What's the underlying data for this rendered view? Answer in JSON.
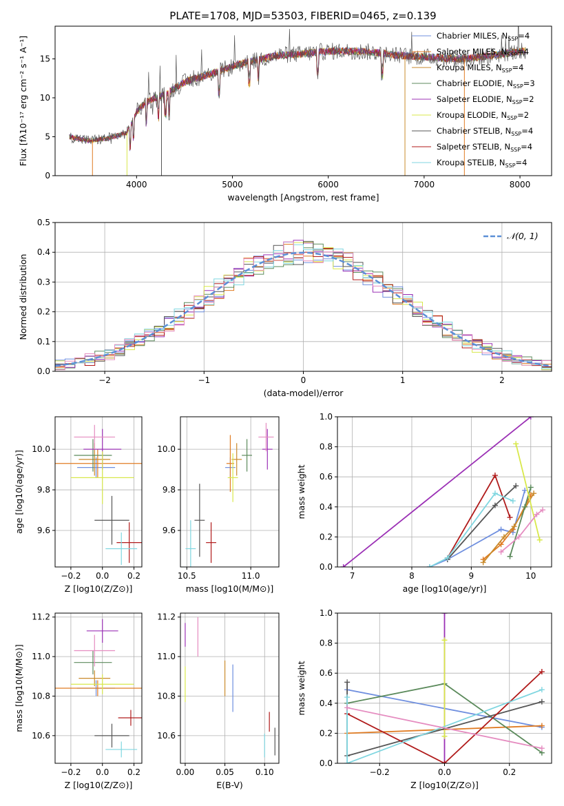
{
  "page": {
    "title": "PLATE=1708, MJD=53503, FIBERID=0465, z=0.139"
  },
  "colors": [
    "#6f8fdf",
    "#e07b22",
    "#c98a2b",
    "#5b8a5b",
    "#9b30b5",
    "#d8e84a",
    "#555555",
    "#b01a1a",
    "#7fd6e0",
    "#e58cc0"
  ],
  "chart_data": [
    {
      "id": "spectrum",
      "type": "line",
      "xlabel": "wavelength [Angstrom, rest frame]",
      "ylabel": "Flux [fλ10⁻¹⁷ erg cm⁻² s⁻¹ A⁻¹]",
      "xlim": [
        3150,
        8330
      ],
      "ylim": [
        0,
        19.2
      ],
      "xticks": [
        4000,
        5000,
        6000,
        7000,
        8000
      ],
      "yticks": [
        0,
        5,
        10,
        15
      ],
      "legend_position": "top-right",
      "continuum": {
        "x": [
          3300,
          3500,
          3700,
          3900,
          4000,
          4100,
          4300,
          4500,
          4700,
          4900,
          5100,
          5300,
          5500,
          5700,
          5900,
          6100,
          6300,
          6500,
          6700,
          6900,
          7100,
          7300,
          7500,
          7700,
          7900,
          8060
        ],
        "y": [
          5.0,
          4.5,
          4.8,
          5.5,
          8.2,
          9.5,
          10.5,
          12.0,
          12.8,
          13.6,
          14.4,
          15.0,
          15.5,
          15.6,
          15.9,
          16.0,
          16.0,
          15.8,
          15.5,
          15.3,
          15.2,
          15.0,
          15.1,
          15.4,
          15.8,
          16.0
        ]
      },
      "series": [
        {
          "name": "Chabrier MILES, N_SSP=4",
          "label": "Chabrier MILES, N",
          "sub": "SSP",
          "tail": "=4"
        },
        {
          "name": "Salpeter MILES, N_SSP=4",
          "label": "Salpeter MILES, N",
          "sub": "SSP",
          "tail": "=4"
        },
        {
          "name": "Kroupa MILES, N_SSP=4",
          "label": "Kroupa MILES, N",
          "sub": "SSP",
          "tail": "=4"
        },
        {
          "name": "Chabrier ELODIE, N_SSP=3",
          "label": "Chabrier ELODIE, N",
          "sub": "SSP",
          "tail": "=3"
        },
        {
          "name": "Salpeter ELODIE, N_SSP=2",
          "label": "Salpeter ELODIE, N",
          "sub": "SSP",
          "tail": "=2"
        },
        {
          "name": "Kroupa ELODIE, N_SSP=2",
          "label": "Kroupa ELODIE, N",
          "sub": "SSP",
          "tail": "=2"
        },
        {
          "name": "Chabrier STELIB, N_SSP=4",
          "label": "Chabrier STELIB, N",
          "sub": "SSP",
          "tail": "=4"
        },
        {
          "name": "Salpeter STELIB, N_SSP=4",
          "label": "Salpeter STELIB, N",
          "sub": "SSP",
          "tail": "=4"
        },
        {
          "name": "Kroupa STELIB, N_SSP=4",
          "label": "Kroupa STELIB, N",
          "sub": "SSP",
          "tail": "=4"
        }
      ],
      "series_colors": [
        "#6f8fdf",
        "#e07b22",
        "#c98a2b",
        "#5b8a5b",
        "#9b30b5",
        "#d8e84a",
        "#555555",
        "#b01a1a",
        "#7fd6e0"
      ]
    },
    {
      "id": "residuals",
      "type": "histogram",
      "xlabel": "(data-model)/error",
      "ylabel": "Normed distribution",
      "xlim": [
        -2.5,
        2.5
      ],
      "ylim": [
        0,
        0.5
      ],
      "xticks": [
        -2,
        -1,
        0,
        1,
        2
      ],
      "yticks": [
        0.0,
        0.1,
        0.2,
        0.3,
        0.4,
        0.5
      ],
      "legend_label": "𝒩(0, 1)",
      "legend_position": "top-right",
      "grid": true
    },
    {
      "id": "age-vs-Z",
      "type": "errorbar",
      "xlabel": "Z [log10(Z/Z⊙)]",
      "ylabel": "age  [log10(age/yr)]",
      "xlim": [
        -0.3,
        0.25
      ],
      "ylim": [
        9.42,
        10.16
      ],
      "xticks": [
        -0.2,
        0.0,
        0.2
      ],
      "yticks": [
        9.6,
        9.8,
        10.0
      ],
      "points": [
        {
          "x": -0.04,
          "y": 9.91,
          "xerr": 0.12,
          "yerr": 0.05,
          "c": 0
        },
        {
          "x": -0.03,
          "y": 9.93,
          "xerr": 0.28,
          "yerr": 0.07,
          "c": 1
        },
        {
          "x": -0.05,
          "y": 9.95,
          "xerr": 0.1,
          "yerr": 0.08,
          "c": 2
        },
        {
          "x": -0.06,
          "y": 9.97,
          "xerr": 0.12,
          "yerr": 0.08,
          "c": 3
        },
        {
          "x": 0.0,
          "y": 10.0,
          "xerr": 0.12,
          "yerr": 0.1,
          "c": 4
        },
        {
          "x": 0.0,
          "y": 9.86,
          "xerr": 0.2,
          "yerr": 0.13,
          "c": 5
        },
        {
          "x": 0.06,
          "y": 9.65,
          "xerr": 0.11,
          "yerr": 0.12,
          "c": 6
        },
        {
          "x": 0.17,
          "y": 9.54,
          "xerr": 0.08,
          "yerr": 0.1,
          "c": 7
        },
        {
          "x": 0.12,
          "y": 9.51,
          "xerr": 0.1,
          "yerr": 0.08,
          "c": 8
        },
        {
          "x": -0.05,
          "y": 10.06,
          "xerr": 0.13,
          "yerr": 0.06,
          "c": 9
        }
      ]
    },
    {
      "id": "age-vs-mass",
      "type": "errorbar",
      "xlabel": "mass [log10(M/M⊙)]",
      "ylabel": "",
      "xlim": [
        10.45,
        11.22
      ],
      "ylim": [
        9.42,
        10.16
      ],
      "xticks": [
        10.5,
        11.0
      ],
      "yticks": [
        9.6,
        9.8,
        10.0
      ],
      "points": [
        {
          "x": 10.84,
          "y": 9.91,
          "xerr": 0.04,
          "yerr": 0.05,
          "c": 0
        },
        {
          "x": 10.84,
          "y": 9.93,
          "xerr": 0.03,
          "yerr": 0.14,
          "c": 1
        },
        {
          "x": 10.89,
          "y": 9.95,
          "xerr": 0.04,
          "yerr": 0.08,
          "c": 2
        },
        {
          "x": 10.97,
          "y": 9.97,
          "xerr": 0.04,
          "yerr": 0.08,
          "c": 3
        },
        {
          "x": 11.13,
          "y": 10.0,
          "xerr": 0.04,
          "yerr": 0.1,
          "c": 4
        },
        {
          "x": 10.86,
          "y": 9.86,
          "xerr": 0.04,
          "yerr": 0.12,
          "c": 5
        },
        {
          "x": 10.6,
          "y": 9.65,
          "xerr": 0.04,
          "yerr": 0.18,
          "c": 6
        },
        {
          "x": 10.69,
          "y": 9.54,
          "xerr": 0.04,
          "yerr": 0.1,
          "c": 7
        },
        {
          "x": 10.53,
          "y": 9.51,
          "xerr": 0.04,
          "yerr": 0.14,
          "c": 8
        },
        {
          "x": 11.12,
          "y": 10.06,
          "xerr": 0.06,
          "yerr": 0.07,
          "c": 9
        }
      ]
    },
    {
      "id": "massweight-vs-age",
      "type": "line",
      "xlabel": "age  [log10(age/yr)]",
      "ylabel": "mass weight",
      "xlim": [
        6.75,
        10.35
      ],
      "ylim": [
        0,
        1.0
      ],
      "xticks": [
        7,
        8,
        9,
        10
      ],
      "yticks": [
        0.0,
        0.2,
        0.4,
        0.6,
        0.8,
        1.0
      ],
      "series": [
        {
          "c": 0,
          "x": [
            8.3,
            8.6,
            9.5,
            9.7,
            9.9
          ],
          "y": [
            0.0,
            0.05,
            0.25,
            0.23,
            0.51
          ]
        },
        {
          "c": 1,
          "x": [
            9.2,
            9.5,
            9.7,
            10.0
          ],
          "y": [
            0.05,
            0.15,
            0.25,
            0.48
          ]
        },
        {
          "c": 2,
          "x": [
            9.2,
            9.55,
            9.72,
            10.05
          ],
          "y": [
            0.03,
            0.2,
            0.27,
            0.49
          ]
        },
        {
          "c": 3,
          "x": [
            9.65,
            9.9,
            10.0
          ],
          "y": [
            0.07,
            0.4,
            0.53
          ]
        },
        {
          "c": 4,
          "x": [
            6.85,
            10.0
          ],
          "y": [
            0.0,
            1.0
          ]
        },
        {
          "c": 5,
          "x": [
            9.75,
            10.15
          ],
          "y": [
            0.82,
            0.18
          ]
        },
        {
          "c": 6,
          "x": [
            8.6,
            9.4,
            9.75
          ],
          "y": [
            0.05,
            0.41,
            0.54
          ]
        },
        {
          "c": 7,
          "x": [
            8.6,
            9.4,
            9.65
          ],
          "y": [
            0.06,
            0.61,
            0.33
          ]
        },
        {
          "c": 8,
          "x": [
            8.3,
            8.6,
            9.4,
            9.7
          ],
          "y": [
            0.0,
            0.06,
            0.49,
            0.44
          ]
        },
        {
          "c": 9,
          "x": [
            9.5,
            9.8,
            10.1,
            10.2
          ],
          "y": [
            0.1,
            0.2,
            0.35,
            0.38
          ]
        }
      ]
    },
    {
      "id": "mass-vs-Z",
      "type": "errorbar",
      "xlabel": "Z [log10(Z/Z⊙)]",
      "ylabel": "mass [log10(M/M⊙)]",
      "xlim": [
        -0.3,
        0.25
      ],
      "ylim": [
        10.46,
        11.22
      ],
      "xticks": [
        -0.2,
        0.0,
        0.2
      ],
      "yticks": [
        10.6,
        10.8,
        11.0,
        11.2
      ],
      "points": [
        {
          "x": -0.04,
          "y": 10.84,
          "xerr": 0.12,
          "yerr": 0.04,
          "c": 0
        },
        {
          "x": -0.03,
          "y": 10.84,
          "xerr": 0.28,
          "yerr": 0.04,
          "c": 1
        },
        {
          "x": -0.05,
          "y": 10.89,
          "xerr": 0.1,
          "yerr": 0.04,
          "c": 2
        },
        {
          "x": -0.06,
          "y": 10.97,
          "xerr": 0.12,
          "yerr": 0.06,
          "c": 3
        },
        {
          "x": 0.0,
          "y": 11.13,
          "xerr": 0.1,
          "yerr": 0.06,
          "c": 4
        },
        {
          "x": 0.0,
          "y": 10.86,
          "xerr": 0.2,
          "yerr": 0.05,
          "c": 5
        },
        {
          "x": 0.06,
          "y": 10.6,
          "xerr": 0.11,
          "yerr": 0.06,
          "c": 6
        },
        {
          "x": 0.18,
          "y": 10.69,
          "xerr": 0.08,
          "yerr": 0.04,
          "c": 7
        },
        {
          "x": 0.12,
          "y": 10.53,
          "xerr": 0.1,
          "yerr": 0.04,
          "c": 8
        },
        {
          "x": -0.05,
          "y": 11.03,
          "xerr": 0.13,
          "yerr": 0.08,
          "c": 9
        }
      ]
    },
    {
      "id": "mass-vs-EBV",
      "type": "errorbar",
      "xlabel": "E(B-V)",
      "ylabel": "",
      "xlim": [
        -0.006,
        0.118
      ],
      "ylim": [
        10.46,
        11.22
      ],
      "xticks": [
        0.0,
        0.05,
        0.1
      ],
      "yticks": [
        10.6,
        10.8,
        11.0,
        11.2
      ],
      "points": [
        {
          "x": 0.06,
          "y": 10.84,
          "xerr": 0,
          "yerr": 0.12,
          "c": 0
        },
        {
          "x": 0.05,
          "y": 10.89,
          "xerr": 0,
          "yerr": 0.09,
          "c": 2
        },
        {
          "x": 0.0,
          "y": 11.11,
          "xerr": 0,
          "yerr": 0.06,
          "c": 4
        },
        {
          "x": 0.0,
          "y": 10.86,
          "xerr": 0,
          "yerr": 0.09,
          "c": 5
        },
        {
          "x": 0.113,
          "y": 10.57,
          "xerr": 0,
          "yerr": 0.07,
          "c": 6
        },
        {
          "x": 0.106,
          "y": 10.67,
          "xerr": 0,
          "yerr": 0.05,
          "c": 7
        },
        {
          "x": 0.1,
          "y": 10.55,
          "xerr": 0,
          "yerr": 0.06,
          "c": 8
        },
        {
          "x": 0.016,
          "y": 11.1,
          "xerr": 0,
          "yerr": 0.1,
          "c": 9
        }
      ]
    },
    {
      "id": "massweight-vs-Z",
      "type": "line",
      "xlabel": "Z [log10(Z/Z⊙)]",
      "ylabel": "mass weight",
      "xlim": [
        -0.33,
        0.33
      ],
      "ylim": [
        0,
        1.0
      ],
      "xticks": [
        -0.2,
        0.0,
        0.2
      ],
      "yticks": [
        0.0,
        0.2,
        0.4,
        0.6,
        0.8,
        1.0
      ],
      "series": [
        {
          "c": 0,
          "x": [
            -0.3,
            0.3
          ],
          "y": [
            0.49,
            0.24
          ]
        },
        {
          "c": 1,
          "x": [
            -0.3,
            0.3
          ],
          "y": [
            0.2,
            0.25
          ]
        },
        {
          "c": 3,
          "x": [
            -0.3,
            0.0,
            0.3
          ],
          "y": [
            0.4,
            0.53,
            0.07
          ]
        },
        {
          "c": 4,
          "x": [
            0.0,
            0.0
          ],
          "y": [
            0.0,
            1.0
          ]
        },
        {
          "c": 5,
          "x": [
            0.0,
            0.0
          ],
          "y": [
            0.18,
            0.82
          ]
        },
        {
          "c": 6,
          "x": [
            -0.3,
            -0.3,
            0.3
          ],
          "y": [
            0.54,
            0.05,
            0.41
          ]
        },
        {
          "c": 7,
          "x": [
            -0.3,
            0.0,
            0.3
          ],
          "y": [
            0.33,
            0.0,
            0.61
          ]
        },
        {
          "c": 8,
          "x": [
            -0.3,
            -0.3,
            0.3
          ],
          "y": [
            0.44,
            0.0,
            0.49
          ]
        },
        {
          "c": 9,
          "x": [
            -0.3,
            0.3
          ],
          "y": [
            0.37,
            0.1
          ]
        }
      ]
    }
  ]
}
